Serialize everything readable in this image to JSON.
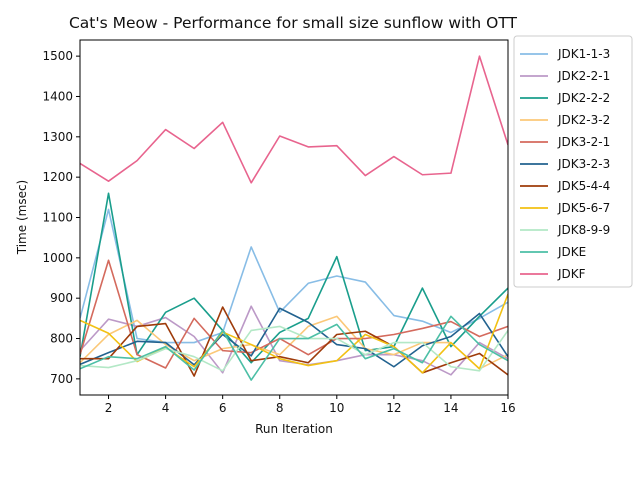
{
  "chart_data": {
    "type": "line",
    "title": "Cat's Meow - Performance for small size sunflow with OTT",
    "xlabel": "Run Iteration",
    "ylabel": "Time (msec)",
    "xlim": [
      1,
      16
    ],
    "ylim": [
      660,
      1540
    ],
    "xticks": [
      2,
      4,
      6,
      8,
      10,
      12,
      14,
      16
    ],
    "yticks": [
      700,
      800,
      900,
      1000,
      1100,
      1200,
      1300,
      1400,
      1500
    ],
    "grid": false,
    "legend_position": "outside-right",
    "x": [
      1,
      2,
      3,
      4,
      5,
      6,
      7,
      8,
      9,
      10,
      11,
      12,
      13,
      14,
      15,
      16
    ],
    "series": [
      {
        "name": "JDK1-1-3",
        "color": "#88bde6",
        "values": [
          850,
          1120,
          800,
          790,
          790,
          815,
          1027,
          865,
          937,
          955,
          940,
          857,
          843,
          815,
          850,
          890
        ]
      },
      {
        "name": "JDK2-2-1",
        "color": "#bc99c7",
        "values": [
          770,
          848,
          830,
          852,
          805,
          715,
          880,
          745,
          735,
          745,
          760,
          760,
          745,
          710,
          790,
          750
        ]
      },
      {
        "name": "JDK2-2-2",
        "color": "#1a9e8c",
        "values": [
          755,
          1160,
          760,
          865,
          900,
          820,
          740,
          815,
          850,
          1003,
          770,
          780,
          925,
          780,
          855,
          925
        ]
      },
      {
        "name": "JDK2-3-2",
        "color": "#fbc878",
        "values": [
          740,
          810,
          845,
          785,
          745,
          775,
          785,
          760,
          830,
          855,
          775,
          760,
          790,
          790,
          725,
          760
        ]
      },
      {
        "name": "JDK3-2-1",
        "color": "#d46a5d",
        "values": [
          760,
          994,
          760,
          727,
          850,
          770,
          765,
          800,
          760,
          800,
          800,
          810,
          825,
          842,
          805,
          830
        ]
      },
      {
        "name": "JDK3-2-3",
        "color": "#22628f",
        "values": [
          736,
          765,
          793,
          790,
          735,
          810,
          757,
          875,
          840,
          785,
          775,
          730,
          782,
          805,
          862,
          755
        ]
      },
      {
        "name": "JDK5-4-4",
        "color": "#9e3b0a",
        "values": [
          750,
          750,
          830,
          837,
          707,
          878,
          745,
          755,
          740,
          810,
          818,
          780,
          715,
          740,
          763,
          710
        ]
      },
      {
        "name": "JDK5-6-7",
        "color": "#f2c113",
        "values": [
          845,
          813,
          743,
          778,
          730,
          816,
          785,
          750,
          733,
          745,
          810,
          780,
          715,
          790,
          725,
          910
        ]
      },
      {
        "name": "JDK8-9-9",
        "color": "#b3e8c6",
        "values": [
          733,
          728,
          745,
          775,
          755,
          720,
          820,
          830,
          800,
          800,
          760,
          790,
          790,
          730,
          720,
          820
        ]
      },
      {
        "name": "JDKE",
        "color": "#4cbfa6",
        "values": [
          725,
          755,
          750,
          780,
          722,
          820,
          697,
          800,
          800,
          835,
          750,
          775,
          740,
          855,
          785,
          745
        ]
      },
      {
        "name": "JDKF",
        "color": "#e8648e",
        "values": [
          1234,
          1190,
          1241,
          1318,
          1271,
          1336,
          1186,
          1302,
          1275,
          1278,
          1204,
          1251,
          1206,
          1210,
          1500,
          1280
        ]
      }
    ]
  }
}
